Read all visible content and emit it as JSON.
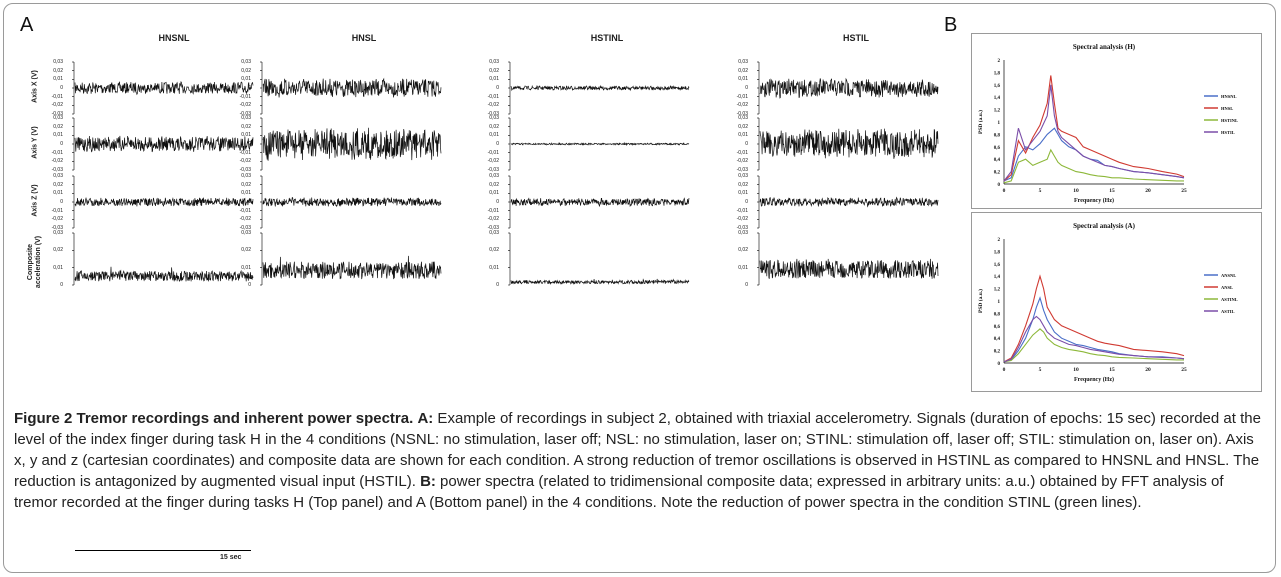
{
  "figure": {
    "panel_a_letter": "A",
    "panel_b_letter": "B",
    "columns": [
      "HNSNL",
      "HNSL",
      "HSTINL",
      "HSTIL"
    ],
    "rows": [
      "Axis X (V)",
      "Axis Y (V)",
      "Axis Z (V)",
      "Composite acceleration (V)"
    ],
    "axis_ticks": [
      "0,03",
      "0,02",
      "0,01",
      "0",
      "-0,01",
      "-0,02",
      "-0,03"
    ],
    "composite_ticks": [
      "0,03",
      "0,02",
      "0,01",
      "0"
    ],
    "scale_label": "15 sec"
  },
  "chart_data": [
    {
      "type": "line",
      "title": "Spectral analysis (H)",
      "xlabel": "Frequency (Hz)",
      "ylabel": "PSD (a.u.)",
      "xlim": [
        0,
        25
      ],
      "ylim": [
        0,
        2
      ],
      "xticks": [
        "0",
        "5",
        "10",
        "15",
        "20",
        "25"
      ],
      "yticks": [
        "0",
        "0,2",
        "0,4",
        "0,6",
        "0,8",
        "1",
        "1,2",
        "1,4",
        "1,6",
        "1,8",
        "2"
      ],
      "legend_position": "right",
      "x": [
        0,
        1,
        2,
        3,
        4,
        5,
        6,
        6.5,
        7,
        7.5,
        8,
        9,
        10,
        11,
        12,
        13,
        14,
        15,
        16,
        18,
        20,
        22,
        24,
        25
      ],
      "series": [
        {
          "name": "HNSNL",
          "color": "#4a6fc9",
          "values": [
            0.05,
            0.1,
            0.45,
            0.6,
            0.55,
            0.65,
            0.8,
            0.85,
            0.9,
            0.8,
            0.7,
            0.6,
            0.55,
            0.45,
            0.4,
            0.38,
            0.3,
            0.28,
            0.25,
            0.2,
            0.18,
            0.15,
            0.12,
            0.1
          ]
        },
        {
          "name": "HNSL",
          "color": "#d03a32",
          "values": [
            0.05,
            0.15,
            0.7,
            0.5,
            0.75,
            0.95,
            1.3,
            1.75,
            1.3,
            0.9,
            0.85,
            0.8,
            0.75,
            0.6,
            0.55,
            0.5,
            0.45,
            0.4,
            0.35,
            0.28,
            0.25,
            0.2,
            0.16,
            0.12
          ]
        },
        {
          "name": "HSTINL",
          "color": "#8db83a",
          "values": [
            0.02,
            0.05,
            0.35,
            0.4,
            0.3,
            0.35,
            0.4,
            0.55,
            0.45,
            0.35,
            0.3,
            0.25,
            0.2,
            0.18,
            0.15,
            0.13,
            0.12,
            0.1,
            0.1,
            0.08,
            0.07,
            0.06,
            0.05,
            0.05
          ]
        },
        {
          "name": "HSTIL",
          "color": "#7b4ea8",
          "values": [
            0.05,
            0.2,
            0.9,
            0.55,
            0.7,
            0.85,
            1.1,
            1.6,
            1.1,
            0.85,
            0.75,
            0.65,
            0.55,
            0.45,
            0.4,
            0.35,
            0.3,
            0.28,
            0.25,
            0.2,
            0.18,
            0.15,
            0.12,
            0.1
          ]
        }
      ]
    },
    {
      "type": "line",
      "title": "Spectral analysis  (A)",
      "xlabel": "Frequency (Hz)",
      "ylabel": "PSD (a.u.)",
      "xlim": [
        0,
        25
      ],
      "ylim": [
        0,
        2
      ],
      "xticks": [
        "0",
        "5",
        "10",
        "15",
        "20",
        "25"
      ],
      "yticks": [
        "0",
        "0,2",
        "0,4",
        "0,6",
        "0,8",
        "1",
        "1,2",
        "1,4",
        "1,6",
        "1,8",
        "2"
      ],
      "legend_position": "right",
      "x": [
        0,
        1,
        2,
        3,
        4,
        4.5,
        5,
        5.5,
        6,
        7,
        8,
        9,
        10,
        11,
        12,
        13,
        14,
        15,
        16,
        18,
        20,
        22,
        24,
        25
      ],
      "series": [
        {
          "name": "ANSNL",
          "color": "#4a6fc9",
          "values": [
            0.02,
            0.05,
            0.2,
            0.4,
            0.7,
            0.9,
            1.05,
            0.85,
            0.7,
            0.5,
            0.4,
            0.35,
            0.3,
            0.28,
            0.25,
            0.22,
            0.2,
            0.18,
            0.15,
            0.12,
            0.1,
            0.1,
            0.08,
            0.07
          ]
        },
        {
          "name": "ANSL",
          "color": "#d03a32",
          "values": [
            0.02,
            0.08,
            0.3,
            0.6,
            0.95,
            1.2,
            1.4,
            1.2,
            0.9,
            0.7,
            0.6,
            0.55,
            0.5,
            0.45,
            0.4,
            0.35,
            0.32,
            0.3,
            0.28,
            0.22,
            0.2,
            0.18,
            0.15,
            0.12
          ]
        },
        {
          "name": "ASTINL",
          "color": "#8db83a",
          "values": [
            0.02,
            0.04,
            0.15,
            0.3,
            0.45,
            0.5,
            0.55,
            0.5,
            0.4,
            0.3,
            0.25,
            0.22,
            0.2,
            0.18,
            0.15,
            0.13,
            0.12,
            0.1,
            0.09,
            0.08,
            0.07,
            0.06,
            0.05,
            0.05
          ]
        },
        {
          "name": "ASTIL",
          "color": "#7b4ea8",
          "values": [
            0.02,
            0.06,
            0.25,
            0.5,
            0.7,
            0.75,
            0.7,
            0.6,
            0.5,
            0.4,
            0.35,
            0.3,
            0.28,
            0.25,
            0.22,
            0.2,
            0.18,
            0.16,
            0.14,
            0.12,
            0.1,
            0.09,
            0.08,
            0.07
          ]
        }
      ]
    }
  ],
  "caption": {
    "heading": "Figure 2 Tremor recordings and inherent power spectra.",
    "a_label": "A:",
    "a_text": " Example of recordings in subject 2, obtained with triaxial accelerometry. Signals (duration of epochs: 15 sec) recorded at the level of the index finger during task H in the 4 conditions (NSNL: no stimulation, laser off; NSL: no stimulation, laser on; STINL: stimulation off, laser off; STIL: stimulation on, laser on). Axis x, y and z (cartesian coordinates) and composite data are shown for each condition. A strong reduction of tremor oscillations is observed in HSTINL as compared to HNSNL and HNSL. The reduction is antagonized by augmented visual input (HSTIL). ",
    "b_label": "B:",
    "b_text": " power spectra (related to tridimensional composite data; expressed in arbitrary units: a.u.) obtained by FFT analysis of tremor recorded at the finger during tasks H (Top panel) and A (Bottom panel) in the 4 conditions. Note the reduction of power spectra in the condition STINL (green lines)."
  }
}
